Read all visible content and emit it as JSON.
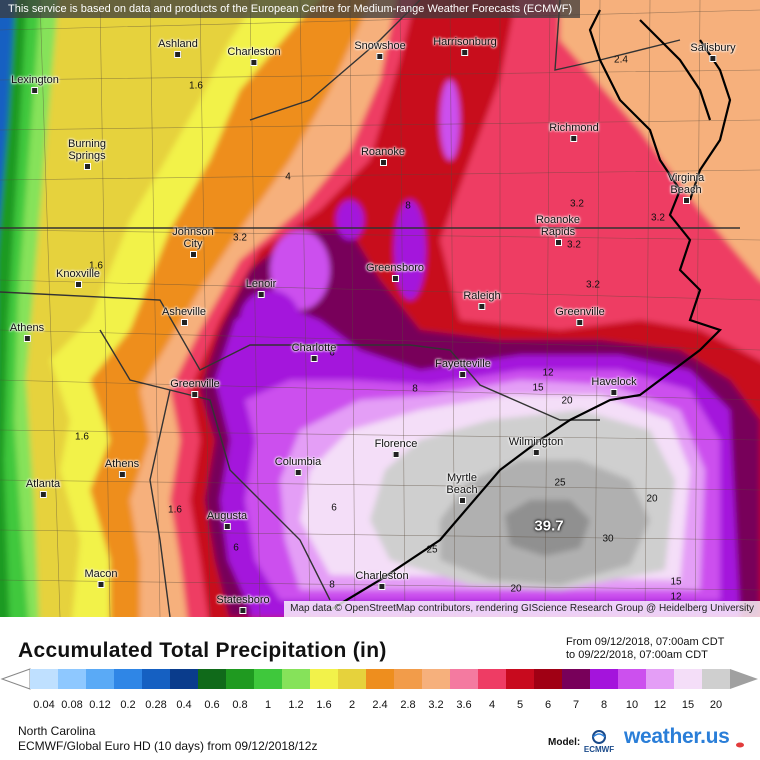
{
  "notice": "This service is based on data and products of the European Centre for Medium-range Weather Forecasts (ECMWF)",
  "attribution": "Map data © OpenStreetMap contributors, rendering GIScience Research Group @ Heidelberg University",
  "legend": {
    "title": "Accumulated Total Precipitation (in)",
    "date_from": "From 09/12/2018, 07:00am CDT",
    "date_to": "to 09/22/2018, 07:00am CDT",
    "region": "North Carolina",
    "model_run": "ECMWF/Global Euro HD (10 days) from 09/12/2018/12z",
    "model_caption": "Model:",
    "logo_text": "ECMWF",
    "brand": "weather.us",
    "ticks": [
      "0.04",
      "0.08",
      "0.12",
      "0.2",
      "0.28",
      "0.4",
      "0.6",
      "0.8",
      "1",
      "1.2",
      "1.6",
      "2",
      "2.4",
      "2.8",
      "3.2",
      "3.6",
      "4",
      "5",
      "6",
      "7",
      "8",
      "10",
      "12",
      "15",
      "20"
    ],
    "colors": [
      "#bfe0ff",
      "#8ec8ff",
      "#5aaaf6",
      "#2f86e6",
      "#1560c2",
      "#0a3c8c",
      "#106a1a",
      "#1f9a20",
      "#3fc83c",
      "#86e25a",
      "#f2f24a",
      "#e6d23c",
      "#ee8e1e",
      "#f29c4a",
      "#f6b07c",
      "#f47aa0",
      "#ee3c64",
      "#c80a1e",
      "#a00014",
      "#78005a",
      "#a414dc",
      "#cc50ee",
      "#e49ef6",
      "#f4def8",
      "#cfcfcf"
    ]
  },
  "map": {
    "max_value": "39.7",
    "value_labels": [
      "1.6",
      "1.6",
      "1.6",
      "1.6",
      "2.4",
      "4",
      "3.2",
      "3.2",
      "3.2",
      "3.2",
      "3.2",
      "6",
      "6",
      "8",
      "8",
      "8",
      "12",
      "15",
      "20",
      "25",
      "30",
      "20",
      "15",
      "12",
      "20",
      "25"
    ],
    "cities": [
      {
        "name": "Ashland"
      },
      {
        "name": "Charleston"
      },
      {
        "name": "Snowshoe"
      },
      {
        "name": "Harrisonburg"
      },
      {
        "name": "Salisbury"
      },
      {
        "name": "Lexington"
      },
      {
        "name": "Burning Springs"
      },
      {
        "name": "Roanoke"
      },
      {
        "name": "Richmond"
      },
      {
        "name": "Virginia Beach"
      },
      {
        "name": "Johnson City"
      },
      {
        "name": "Roanoke Rapids"
      },
      {
        "name": "Knoxville"
      },
      {
        "name": "Lenoir"
      },
      {
        "name": "Greensboro"
      },
      {
        "name": "Raleigh"
      },
      {
        "name": "Asheville"
      },
      {
        "name": "Greenville"
      },
      {
        "name": "Athens"
      },
      {
        "name": "Charlotte"
      },
      {
        "name": "Fayetteville"
      },
      {
        "name": "Greenville"
      },
      {
        "name": "Havelock"
      },
      {
        "name": "Florence"
      },
      {
        "name": "Wilmington"
      },
      {
        "name": "Athens"
      },
      {
        "name": "Columbia"
      },
      {
        "name": "Myrtle Beach"
      },
      {
        "name": "Atlanta"
      },
      {
        "name": "Augusta"
      },
      {
        "name": "Macon"
      },
      {
        "name": "Charleston"
      },
      {
        "name": "Statesboro"
      }
    ]
  }
}
